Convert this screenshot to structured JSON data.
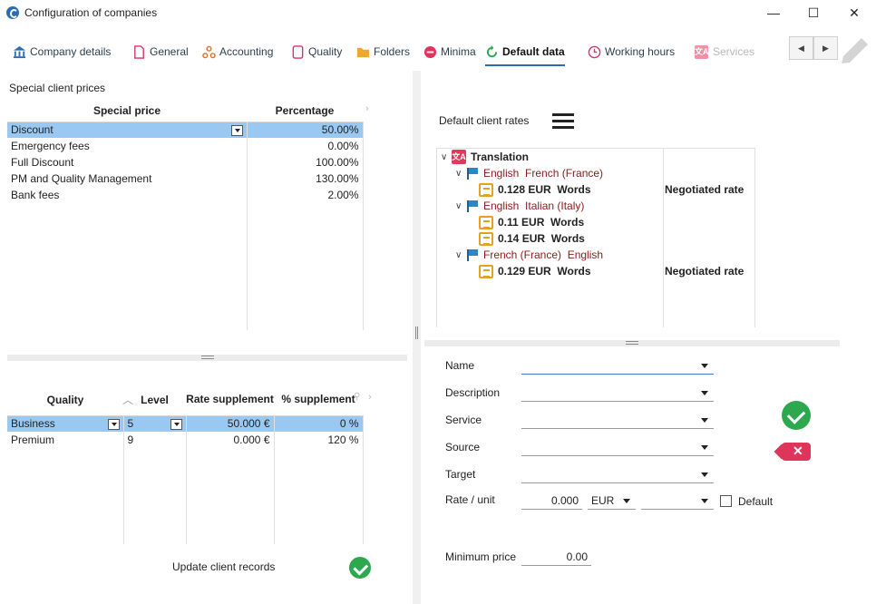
{
  "window": {
    "title": "Configuration of companies",
    "minimize": "—",
    "maximize": "☐",
    "close": "✕"
  },
  "tabs": [
    {
      "label": "Company details",
      "icon": "bank-icon"
    },
    {
      "label": "General",
      "icon": "document-icon"
    },
    {
      "label": "Accounting",
      "icon": "accounting-icon"
    },
    {
      "label": "Quality",
      "icon": "quality-icon"
    },
    {
      "label": "Folders",
      "icon": "folder-icon"
    },
    {
      "label": "Minima",
      "icon": "minus-circle-icon"
    },
    {
      "label": "Default data",
      "icon": "refresh-icon",
      "active": true
    },
    {
      "label": "Working hours",
      "icon": "clock-icon"
    },
    {
      "label": "Services",
      "icon": "translate-icon"
    }
  ],
  "tab_nav": {
    "prev": "◀",
    "next": "▶"
  },
  "special_prices": {
    "title": "Special client prices",
    "col_price": "Special price",
    "col_percentage": "Percentage",
    "rows": [
      {
        "name": "Discount",
        "pct": "50.00%"
      },
      {
        "name": "Emergency fees",
        "pct": "0.00%"
      },
      {
        "name": "Full Discount",
        "pct": "100.00%"
      },
      {
        "name": "PM and Quality Management",
        "pct": "130.00%"
      },
      {
        "name": "Bank fees",
        "pct": "2.00%"
      }
    ]
  },
  "quality_table": {
    "col_quality": "Quality",
    "col_level": "Level",
    "col_rate": "Rate supplement",
    "col_pct": "% supplement",
    "rows": [
      {
        "quality": "Business",
        "level": "5",
        "rate": "50.000 €",
        "pct": "0 %"
      },
      {
        "quality": "Premium",
        "level": "9",
        "rate": "0.000 €",
        "pct": "120 %"
      }
    ]
  },
  "update_label": "Update client records",
  "default_rates": {
    "title": "Default client rates",
    "service": "Translation",
    "pairs": [
      {
        "src": "English",
        "tgt": "French (France)",
        "rates": [
          {
            "amount": "0.128 EUR",
            "unit": "Words",
            "note": "Negotiated rate"
          }
        ]
      },
      {
        "src": "English",
        "tgt": "Italian (Italy)",
        "rates": [
          {
            "amount": "0.11 EUR",
            "unit": "Words",
            "note": ""
          },
          {
            "amount": "0.14 EUR",
            "unit": "Words",
            "note": ""
          }
        ]
      },
      {
        "src": "French (France)",
        "tgt": "English",
        "rates": [
          {
            "amount": "0.129 EUR",
            "unit": "Words",
            "note": "Negotiated rate"
          }
        ]
      }
    ]
  },
  "form": {
    "name_label": "Name",
    "description_label": "Description",
    "service_label": "Service",
    "source_label": "Source",
    "target_label": "Target",
    "rate_label": "Rate / unit",
    "rate_value": "0.000",
    "currency": "EUR",
    "default_label": "Default",
    "min_price_label": "Minimum price",
    "min_price_value": "0.00"
  }
}
